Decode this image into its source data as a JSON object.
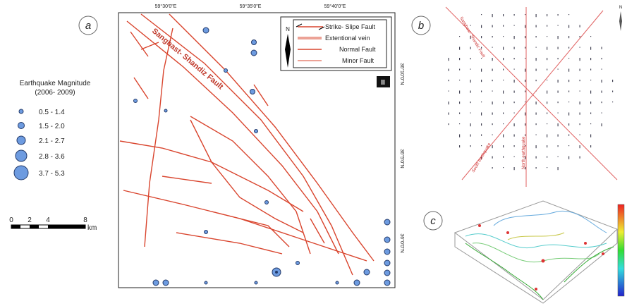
{
  "panels": {
    "a": "a",
    "b": "b",
    "c": "c"
  },
  "magnitude_legend": {
    "title_lines": [
      "Earthquake Magnitude",
      "(2006- 2009)"
    ],
    "items": [
      "0.5 - 1.4",
      "1.5 - 2.0",
      "2.1 - 2.7",
      "2.8 - 3.6",
      "3.7 - 5.3"
    ]
  },
  "scale_bar": {
    "labels": [
      "0",
      "2",
      "4",
      "8"
    ],
    "unit": "km"
  },
  "map": {
    "longitudes": [
      "59°30'0\"E",
      "59°35'0\"E",
      "59°40'0\"E"
    ],
    "latitudes": [
      "36°10'0\"N",
      "36°5'0\"N",
      "36°0'0\"N"
    ],
    "north": "N",
    "zone": "II",
    "fault_name": "Sangbast- Shandiz Fault",
    "fault_legend": [
      "Strike- Slipe Fault",
      "Extentional vein",
      "Normal Fault",
      "Minor Fault"
    ]
  },
  "rose": {
    "fault": "Sangbast- Shandiz Fault",
    "north_eq": "North earthquake",
    "south_eq": "South earthquake",
    "north": "N"
  }
}
